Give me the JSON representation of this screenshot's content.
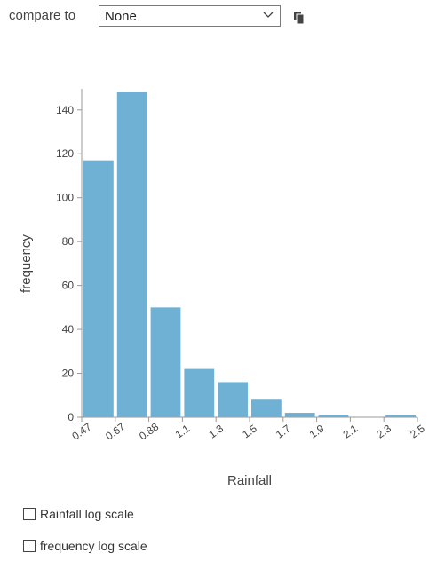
{
  "toolbar": {
    "compare_label": "compare to",
    "compare_value": "None",
    "caret_icon": "chevron-down-icon",
    "copy_icon": "copy-icon"
  },
  "chart_data": {
    "type": "bar",
    "xlabel": "Rainfall",
    "ylabel": "frequency",
    "x_ticks": [
      "0.47",
      "0.67",
      "0.88",
      "1.1",
      "1.3",
      "1.5",
      "1.7",
      "1.9",
      "2.1",
      "2.3",
      "2.5"
    ],
    "values": [
      117,
      148,
      50,
      22,
      16,
      8,
      2,
      1,
      0,
      1
    ],
    "y_ticks": [
      0,
      20,
      40,
      60,
      80,
      100,
      120,
      140
    ],
    "ylim": [
      0,
      148
    ],
    "bar_color": "#6fb1d4",
    "grid": false
  },
  "options": {
    "x_log_label": "Rainfall log scale",
    "y_log_label": "frequency log scale"
  }
}
